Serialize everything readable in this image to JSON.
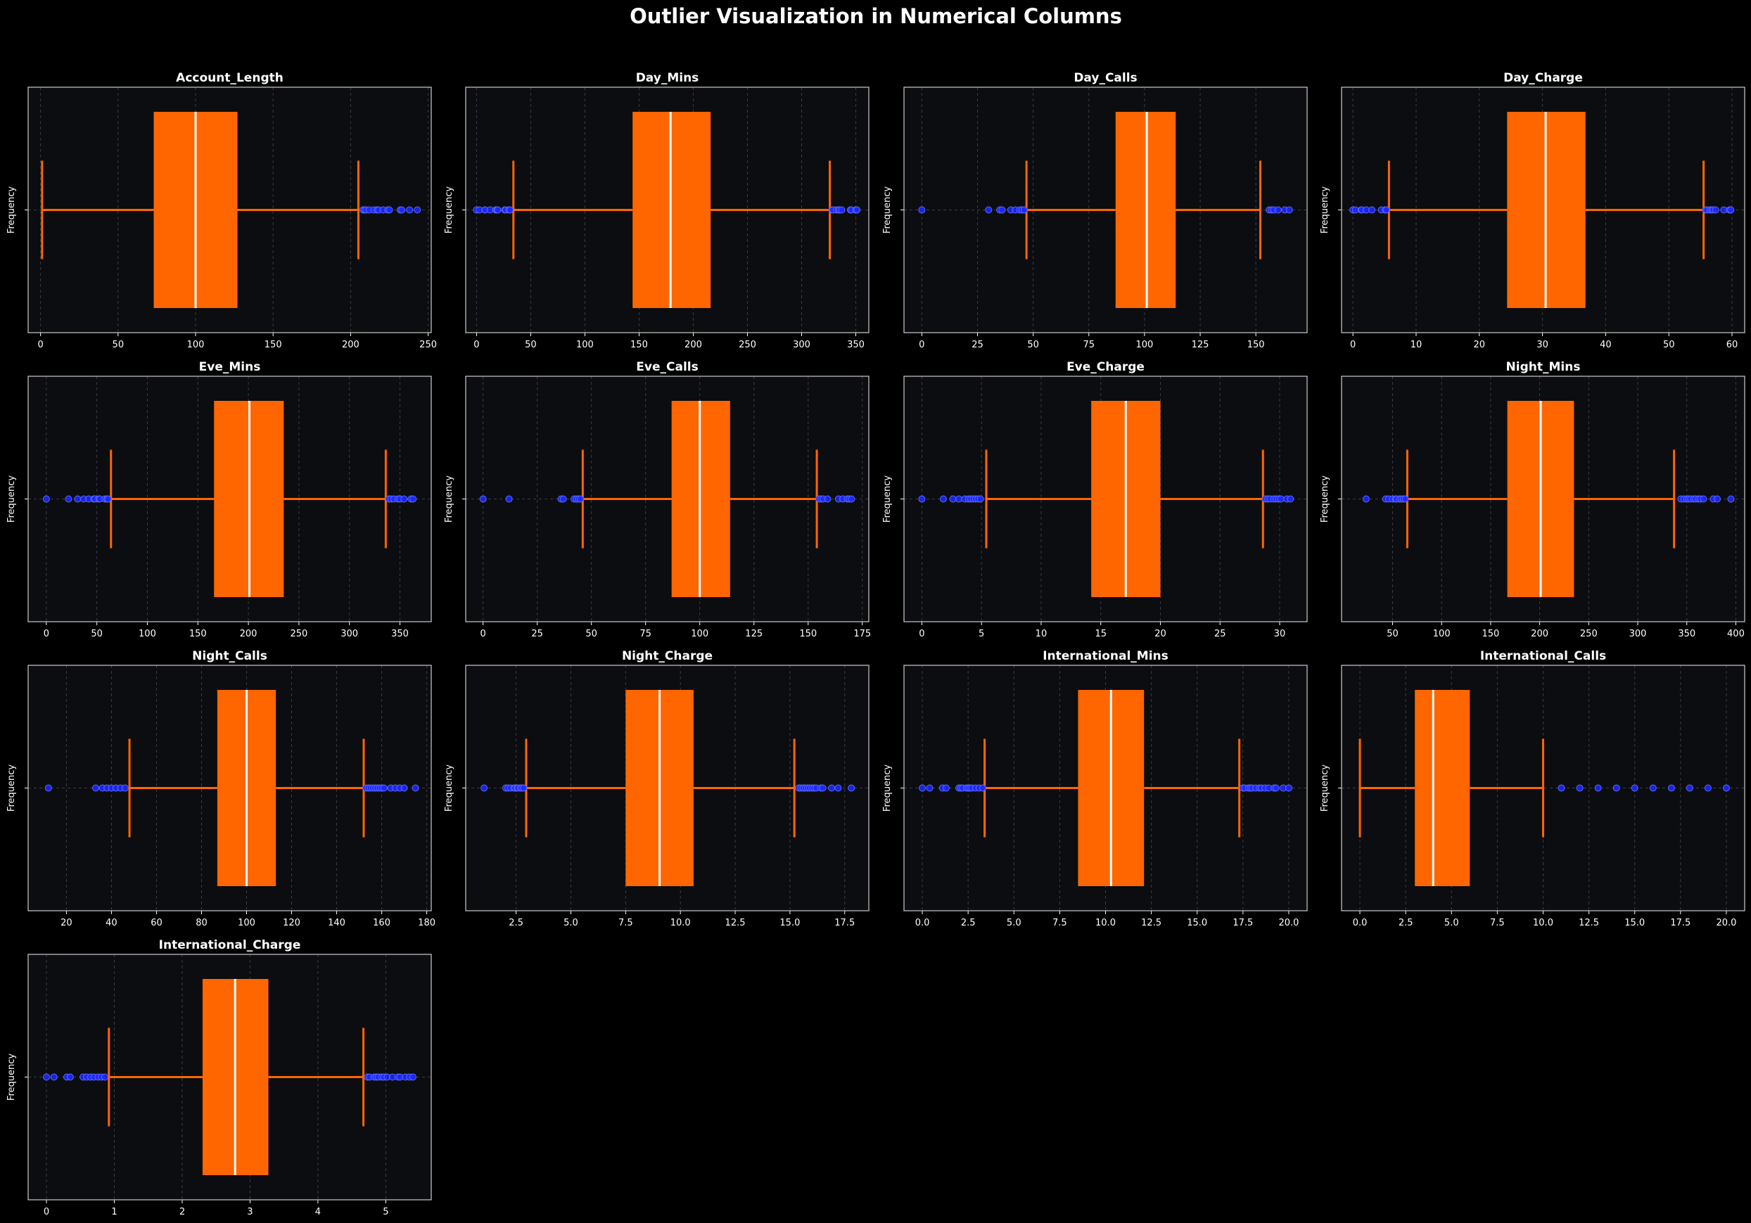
{
  "title": "Outlier Visualization in Numerical Columns",
  "colors": {
    "background": "#000000",
    "axes_face": "#0c0d10",
    "axes_edge": "#cccccc",
    "box": "#ff6600",
    "median": "#ffffff",
    "whisker": "#ff6600",
    "outlier_face": "#1a2aff",
    "outlier_edge": "#5f68ff",
    "grid": "#3a3d45"
  },
  "chart_data": [
    {
      "type": "box",
      "title": "Account_Length",
      "ylabel": "Frequency",
      "grid": true,
      "xlim": [
        -8,
        252
      ],
      "ticks": [
        0,
        50,
        100,
        150,
        200,
        250
      ],
      "tick_labels": [
        "0",
        "50",
        "100",
        "150",
        "200",
        "250"
      ],
      "q1": 73,
      "median": 100,
      "q3": 127,
      "whisker_low": 1,
      "whisker_high": 205,
      "outliers": [
        208,
        209,
        210,
        212,
        215,
        217,
        218,
        221,
        224,
        225,
        232,
        233,
        238,
        243
      ]
    },
    {
      "type": "box",
      "title": "Day_Mins",
      "ylabel": "Frequency",
      "grid": true,
      "xlim": [
        -10,
        362
      ],
      "ticks": [
        0,
        50,
        100,
        150,
        200,
        250,
        300,
        350
      ],
      "tick_labels": [
        "0",
        "50",
        "100",
        "150",
        "200",
        "250",
        "300",
        "350"
      ],
      "q1": 144,
      "median": 179,
      "q3": 216,
      "whisker_low": 34,
      "whisker_high": 326,
      "outliers": [
        0,
        2.6,
        7.8,
        7.9,
        12.5,
        17.6,
        18.9,
        19.5,
        25.9,
        27,
        29.9,
        30.9,
        328,
        329,
        332,
        334,
        335,
        337,
        345,
        346,
        350,
        351
      ]
    },
    {
      "type": "box",
      "title": "Day_Calls",
      "ylabel": "Frequency",
      "grid": true,
      "xlim": [
        -8,
        173
      ],
      "ticks": [
        0,
        25,
        50,
        75,
        100,
        125,
        150
      ],
      "tick_labels": [
        "0",
        "25",
        "50",
        "75",
        "100",
        "125",
        "150"
      ],
      "q1": 87,
      "median": 101,
      "q3": 114,
      "whisker_low": 47,
      "whisker_high": 152,
      "outliers": [
        0,
        30,
        35,
        36,
        40,
        42,
        44,
        45,
        46,
        156,
        157,
        158,
        160,
        163,
        165
      ]
    },
    {
      "type": "box",
      "title": "Day_Charge",
      "ylabel": "Frequency",
      "grid": true,
      "xlim": [
        -1.8,
        62
      ],
      "ticks": [
        0,
        10,
        20,
        30,
        40,
        50,
        60
      ],
      "tick_labels": [
        "0",
        "10",
        "20",
        "30",
        "40",
        "50",
        "60"
      ],
      "q1": 24.4,
      "median": 30.5,
      "q3": 36.8,
      "whisker_low": 5.7,
      "whisker_high": 55.5,
      "outliers": [
        0,
        0.4,
        1.3,
        1.4,
        2.1,
        3,
        4.5,
        5.1,
        5.3,
        55.8,
        56,
        56.5,
        56.8,
        57,
        57.4,
        58.7,
        59.6,
        59.8
      ]
    },
    {
      "type": "box",
      "title": "Eve_Mins",
      "ylabel": "Frequency",
      "grid": true,
      "xlim": [
        -18,
        381
      ],
      "ticks": [
        0,
        50,
        100,
        150,
        200,
        250,
        300,
        350
      ],
      "tick_labels": [
        "0",
        "50",
        "100",
        "150",
        "200",
        "250",
        "300",
        "350"
      ],
      "q1": 166,
      "median": 201,
      "q3": 235,
      "whisker_low": 64,
      "whisker_high": 336,
      "outliers": [
        0,
        22,
        31,
        37,
        42,
        47,
        48,
        52,
        53,
        58,
        60,
        61,
        339,
        341,
        344,
        348,
        350,
        354,
        361,
        363
      ]
    },
    {
      "type": "box",
      "title": "Eve_Calls",
      "ylabel": "Frequency",
      "grid": true,
      "xlim": [
        -8,
        178
      ],
      "ticks": [
        0,
        25,
        50,
        75,
        100,
        125,
        150,
        175
      ],
      "tick_labels": [
        "0",
        "25",
        "50",
        "75",
        "100",
        "125",
        "150",
        "175"
      ],
      "q1": 87,
      "median": 100,
      "q3": 114,
      "whisker_low": 46,
      "whisker_high": 154,
      "outliers": [
        0,
        12,
        36,
        37,
        42,
        43,
        44,
        45,
        155,
        156,
        157,
        159,
        164,
        166,
        168,
        169,
        170
      ]
    },
    {
      "type": "box",
      "title": "Eve_Charge",
      "ylabel": "Frequency",
      "grid": true,
      "xlim": [
        -1.5,
        32.3
      ],
      "ticks": [
        0,
        5,
        10,
        15,
        20,
        25,
        30
      ],
      "tick_labels": [
        "0",
        "5",
        "10",
        "15",
        "20",
        "25",
        "30"
      ],
      "q1": 14.2,
      "median": 17.1,
      "q3": 20,
      "whisker_low": 5.4,
      "whisker_high": 28.6,
      "outliers": [
        0,
        1.8,
        2.6,
        3.1,
        3.6,
        3.9,
        4.1,
        4.3,
        4.5,
        4.7,
        4.9,
        28.8,
        29,
        29.2,
        29.5,
        29.7,
        29.9,
        30.1,
        30.6,
        30.9
      ]
    },
    {
      "type": "box",
      "title": "Night_Mins",
      "ylabel": "Frequency",
      "grid": true,
      "xlim": [
        -2,
        409
      ],
      "ticks": [
        50,
        100,
        150,
        200,
        250,
        300,
        350,
        400
      ],
      "tick_labels": [
        "50",
        "100",
        "150",
        "200",
        "250",
        "300",
        "350",
        "400"
      ],
      "q1": 167,
      "median": 201,
      "q3": 235,
      "whisker_low": 65,
      "whisker_high": 337,
      "outliers": [
        23,
        43,
        46,
        50,
        53,
        54,
        57,
        59,
        61,
        63,
        344,
        347,
        350,
        352,
        354,
        357,
        359,
        362,
        364,
        367,
        377,
        381,
        395
      ]
    },
    {
      "type": "box",
      "title": "Night_Calls",
      "ylabel": "Frequency",
      "grid": true,
      "xlim": [
        3,
        182
      ],
      "ticks": [
        20,
        40,
        60,
        80,
        100,
        120,
        140,
        160,
        180
      ],
      "tick_labels": [
        "20",
        "40",
        "60",
        "80",
        "100",
        "120",
        "140",
        "160",
        "180"
      ],
      "q1": 87,
      "median": 100,
      "q3": 113,
      "whisker_low": 48,
      "whisker_high": 152,
      "outliers": [
        12,
        33,
        36,
        38,
        40,
        42,
        44,
        46,
        153,
        154,
        155,
        156,
        157,
        158,
        159,
        160,
        161,
        164,
        166,
        168,
        170,
        175
      ]
    },
    {
      "type": "box",
      "title": "Night_Charge",
      "ylabel": "Frequency",
      "grid": true,
      "xlim": [
        0.2,
        18.6
      ],
      "ticks": [
        2.5,
        5,
        7.5,
        10,
        12.5,
        15,
        17.5
      ],
      "tick_labels": [
        "2.5",
        "5.0",
        "7.5",
        "10.0",
        "12.5",
        "15.0",
        "17.5"
      ],
      "q1": 7.5,
      "median": 9.05,
      "q3": 10.6,
      "whisker_low": 2.96,
      "whisker_high": 15.2,
      "outliers": [
        1.04,
        2.03,
        2.13,
        2.25,
        2.4,
        2.45,
        2.55,
        2.59,
        2.7,
        2.76,
        2.85,
        15.4,
        15.5,
        15.6,
        15.7,
        15.8,
        15.9,
        16,
        16.1,
        16.2,
        16.4,
        16.5,
        16.9,
        17.2,
        17.8
      ]
    },
    {
      "type": "box",
      "title": "International_Mins",
      "ylabel": "Frequency",
      "grid": true,
      "xlim": [
        -1,
        21
      ],
      "ticks": [
        0,
        2.5,
        5,
        7.5,
        10,
        12.5,
        15,
        17.5,
        20
      ],
      "tick_labels": [
        "0.0",
        "2.5",
        "5.0",
        "7.5",
        "10.0",
        "12.5",
        "15.0",
        "17.5",
        "20.0"
      ],
      "q1": 8.5,
      "median": 10.3,
      "q3": 12.1,
      "whisker_low": 3.4,
      "whisker_high": 17.3,
      "outliers": [
        0,
        0.4,
        1.1,
        1.3,
        2,
        2.1,
        2.2,
        2.4,
        2.5,
        2.6,
        2.7,
        2.9,
        3.1,
        3.3,
        17.5,
        17.6,
        17.8,
        17.9,
        18,
        18.2,
        18.4,
        18.5,
        18.7,
        18.9,
        19.2,
        19.3,
        19.7,
        20
      ]
    },
    {
      "type": "box",
      "title": "International_Calls",
      "ylabel": "Frequency",
      "grid": true,
      "xlim": [
        -1,
        21
      ],
      "ticks": [
        0,
        2.5,
        5,
        7.5,
        10,
        12.5,
        15,
        17.5,
        20
      ],
      "tick_labels": [
        "0.0",
        "2.5",
        "5.0",
        "7.5",
        "10.0",
        "12.5",
        "15.0",
        "17.5",
        "20.0"
      ],
      "q1": 3,
      "median": 4,
      "q3": 6,
      "whisker_low": 0,
      "whisker_high": 10,
      "outliers": [
        11,
        12,
        13,
        14,
        15,
        16,
        17,
        18,
        19,
        20
      ]
    },
    {
      "type": "box",
      "title": "International_Charge",
      "ylabel": "Frequency",
      "grid": true,
      "xlim": [
        -0.27,
        5.67
      ],
      "ticks": [
        0,
        1,
        2,
        3,
        4,
        5
      ],
      "tick_labels": [
        "0",
        "1",
        "2",
        "3",
        "4",
        "5"
      ],
      "q1": 2.3,
      "median": 2.78,
      "q3": 3.27,
      "whisker_low": 0.92,
      "whisker_high": 4.67,
      "outliers": [
        0,
        0.11,
        0.3,
        0.35,
        0.54,
        0.59,
        0.65,
        0.7,
        0.76,
        0.81,
        0.86,
        4.73,
        4.76,
        4.83,
        4.86,
        4.89,
        4.94,
        4.97,
        5.02,
        5.1,
        5.18,
        5.21,
        5.29,
        5.35,
        5.4
      ]
    }
  ]
}
